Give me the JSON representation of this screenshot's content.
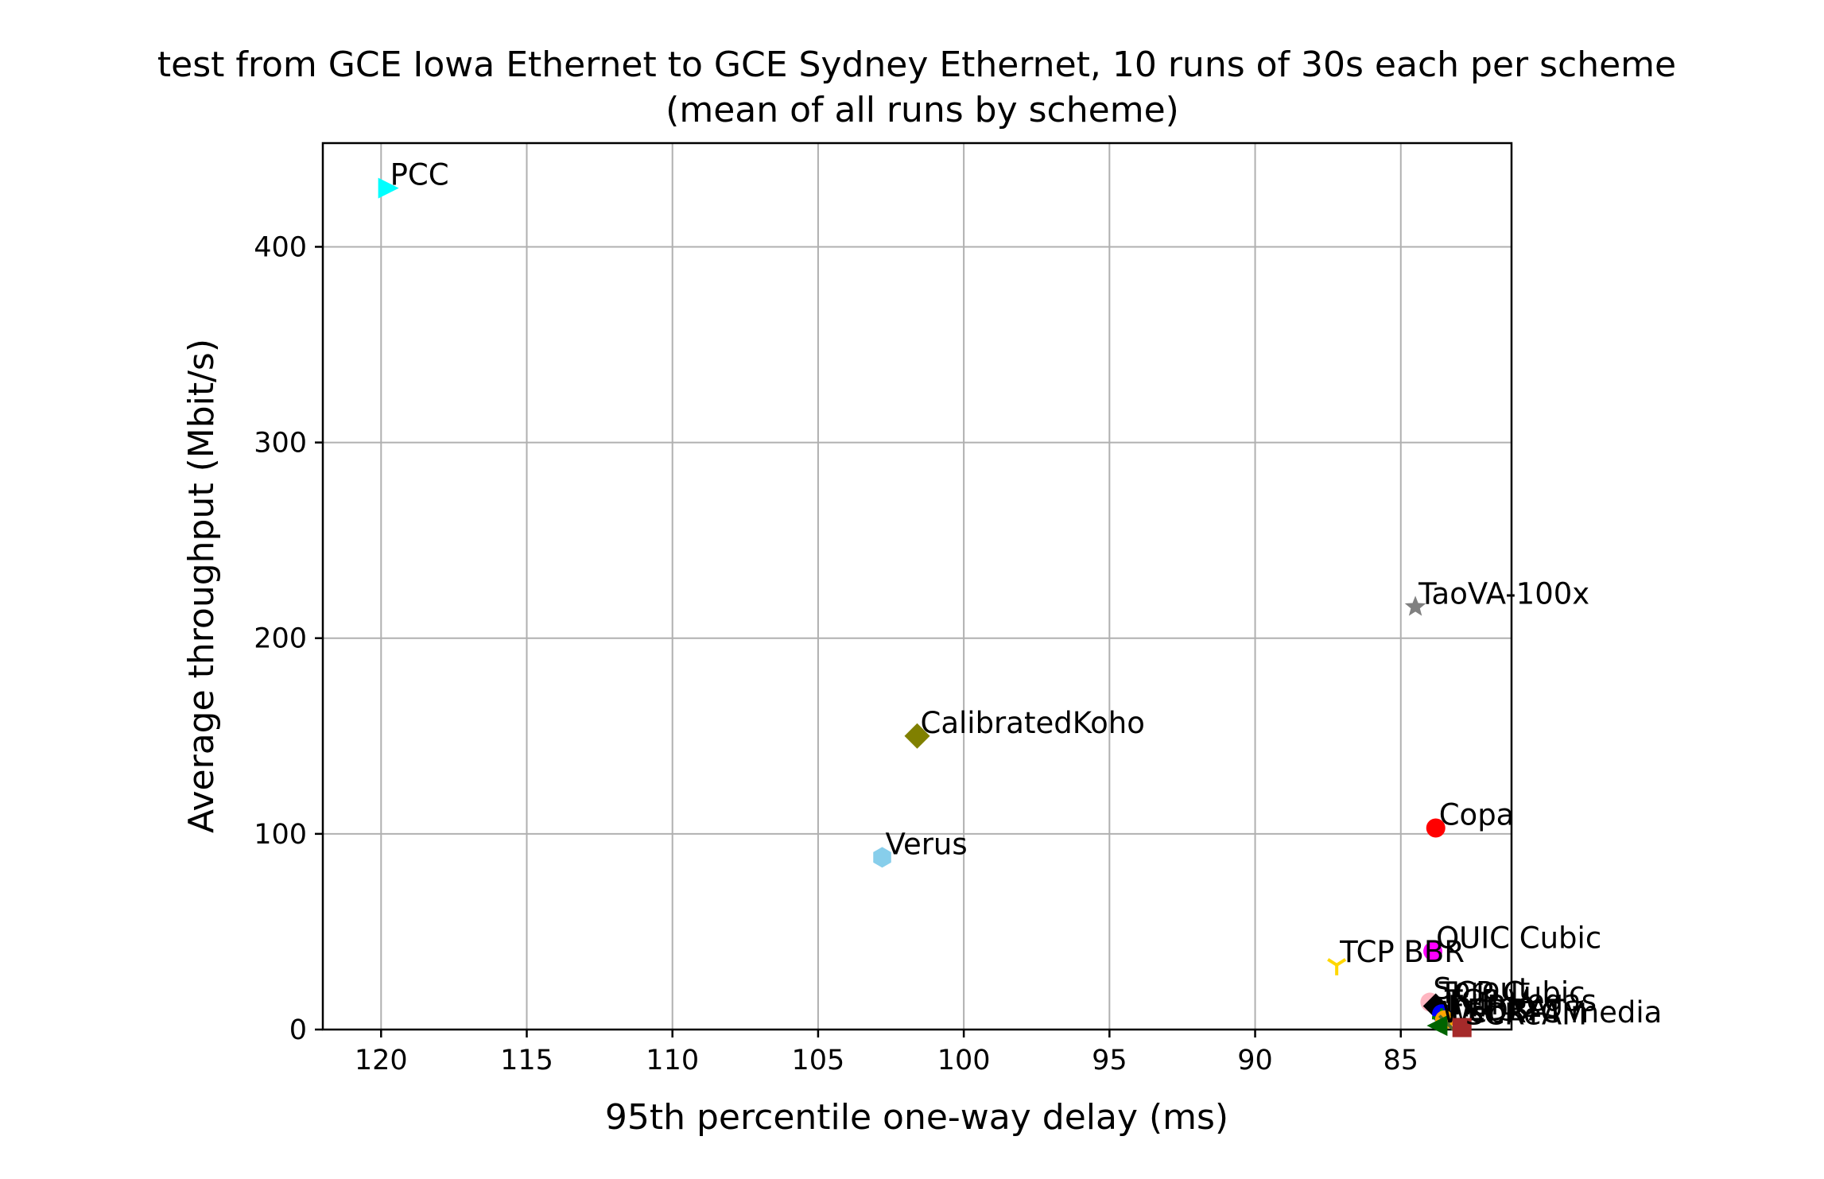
{
  "chart_data": {
    "type": "scatter",
    "title": "test from GCE Iowa Ethernet to GCE Sydney Ethernet, 10 runs of 30s each per scheme",
    "subtitle": "(mean of all runs by scheme)",
    "xlabel": "95th percentile one-way delay (ms)",
    "ylabel": "Average throughput (Mbit/s)",
    "xlim": [
      122,
      81.2
    ],
    "x_inverted": true,
    "ylim": [
      0,
      453
    ],
    "xticks": [
      120,
      115,
      110,
      105,
      100,
      95,
      90,
      85
    ],
    "yticks": [
      0,
      100,
      200,
      300,
      400
    ],
    "grid": true,
    "series": [
      {
        "name": "PCC",
        "x": 119.8,
        "y": 430,
        "marker": "triangle-right",
        "color": "#00ffff"
      },
      {
        "name": "TaoVA-100x",
        "x": 84.5,
        "y": 216,
        "marker": "star",
        "color": "#808080"
      },
      {
        "name": "CalibratedKoho",
        "x": 101.6,
        "y": 150,
        "marker": "diamond",
        "color": "#808000"
      },
      {
        "name": "Copa",
        "x": 83.8,
        "y": 103,
        "marker": "circle",
        "color": "#ff0000"
      },
      {
        "name": "Verus",
        "x": 102.8,
        "y": 88,
        "marker": "hexagon",
        "color": "#87ceeb"
      },
      {
        "name": "QUIC Cubic",
        "x": 83.9,
        "y": 40,
        "marker": "circle",
        "color": "#ff00ff"
      },
      {
        "name": "TCP BBR",
        "x": 87.2,
        "y": 33,
        "marker": "tri-down",
        "color": "#ffd700"
      },
      {
        "name": "Sprout",
        "x": 84.0,
        "y": 14,
        "marker": "circle",
        "color": "#ffb6c1"
      },
      {
        "name": "TCP Cubic",
        "x": 83.8,
        "y": 12,
        "marker": "diamond",
        "color": "#000000"
      },
      {
        "name": "TCP Vegas",
        "x": 83.6,
        "y": 8,
        "marker": "circle",
        "color": "#0000ff"
      },
      {
        "name": "Indigo",
        "x": 83.6,
        "y": 6,
        "marker": "plus",
        "color": "#008000"
      },
      {
        "name": "FillP",
        "x": 83.5,
        "y": 5,
        "marker": "circle",
        "color": "#ffa500"
      },
      {
        "name": "LEDBAT",
        "x": 83.4,
        "y": 3,
        "marker": "x",
        "color": "#556b2f"
      },
      {
        "name": "WebRTC media",
        "x": 83.7,
        "y": 2,
        "marker": "triangle-left",
        "color": "#006400"
      },
      {
        "name": "SCReAM",
        "x": 82.9,
        "y": 1,
        "marker": "square",
        "color": "#a52a2a"
      }
    ]
  }
}
